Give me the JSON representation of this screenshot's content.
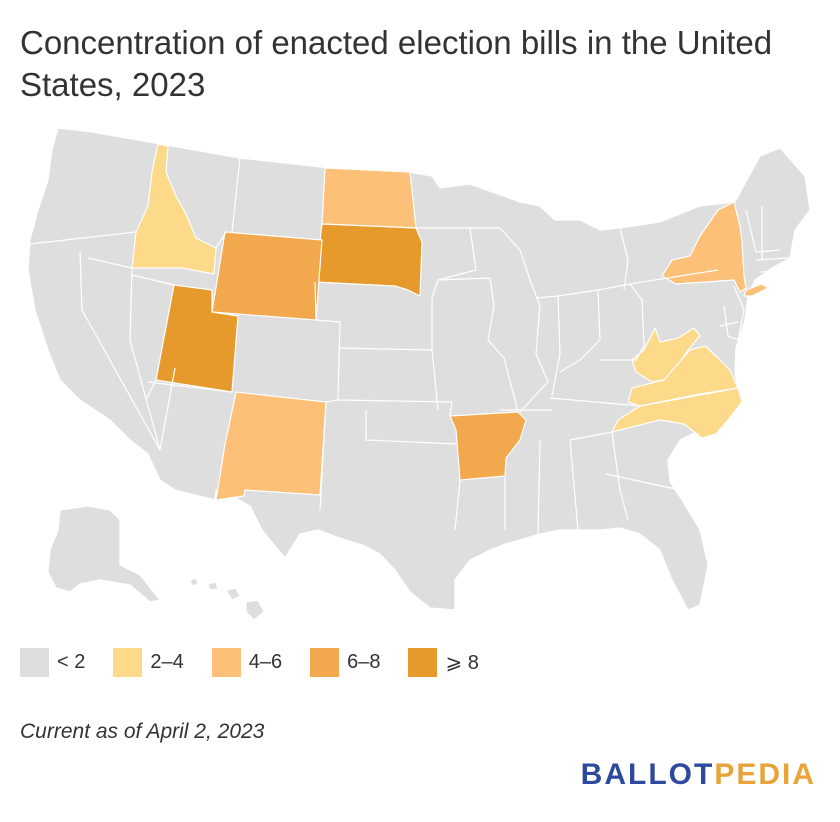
{
  "title": "Concentration of enacted election bills in the United States, 2023",
  "legend": [
    {
      "label": "< 2",
      "color": "#dedede"
    },
    {
      "label": "2–4",
      "color": "#fdd98a"
    },
    {
      "label": "4–6",
      "color": "#fcc079"
    },
    {
      "label": "6–8",
      "color": "#f2a84c"
    },
    {
      "label": "⩾ 8",
      "color": "#e69a2b"
    }
  ],
  "note": "Current as of April 2, 2023",
  "logo": {
    "part1": "BALLOT",
    "part2": "PEDIA",
    "color1": "#2e4a9e",
    "color2": "#e8a33a"
  },
  "colors": {
    "base": "#dedede",
    "c24": "#fdd98a",
    "c46": "#fcc079",
    "c68": "#f2a84c",
    "c8": "#e69a2b"
  },
  "highlighted_states": {
    "2–4": [
      "Idaho",
      "West Virginia",
      "Virginia",
      "North Carolina"
    ],
    "4–6": [
      "North Dakota",
      "New Mexico",
      "New York"
    ],
    "6–8": [
      "Wyoming",
      "Arkansas"
    ],
    "⩾ 8": [
      "Utah",
      "South Dakota"
    ]
  }
}
